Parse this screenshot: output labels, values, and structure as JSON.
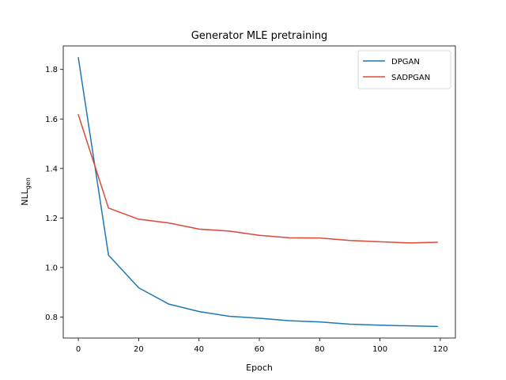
{
  "chart_data": {
    "type": "line",
    "title": "Generator MLE pretraining",
    "xlabel": "Epoch",
    "ylabel": "NLL",
    "ylabel_subscript": "gen",
    "xlim": [
      -5,
      125
    ],
    "ylim": [
      0.715,
      1.895
    ],
    "xticks": [
      0,
      20,
      40,
      60,
      80,
      100,
      120
    ],
    "yticks": [
      0.8,
      1.0,
      1.2,
      1.4,
      1.6,
      1.8
    ],
    "ytick_labels": [
      "0.8",
      "1.0",
      "1.2",
      "1.4",
      "1.6",
      "1.8"
    ],
    "legend_position": "top-right",
    "series": [
      {
        "name": "DPGAN",
        "color": "#1f77b4",
        "x": [
          0,
          10,
          20,
          30,
          40,
          50,
          60,
          70,
          80,
          90,
          100,
          110,
          119
        ],
        "y": [
          1.847,
          1.05,
          0.918,
          0.852,
          0.822,
          0.803,
          0.795,
          0.785,
          0.78,
          0.771,
          0.767,
          0.764,
          0.762
        ]
      },
      {
        "name": "SADPGAN",
        "color": "#d94a38",
        "x": [
          0,
          10,
          20,
          30,
          40,
          50,
          60,
          70,
          80,
          90,
          100,
          110,
          119
        ],
        "y": [
          1.617,
          1.24,
          1.195,
          1.18,
          1.155,
          1.147,
          1.13,
          1.12,
          1.119,
          1.109,
          1.104,
          1.099,
          1.102
        ]
      }
    ]
  }
}
